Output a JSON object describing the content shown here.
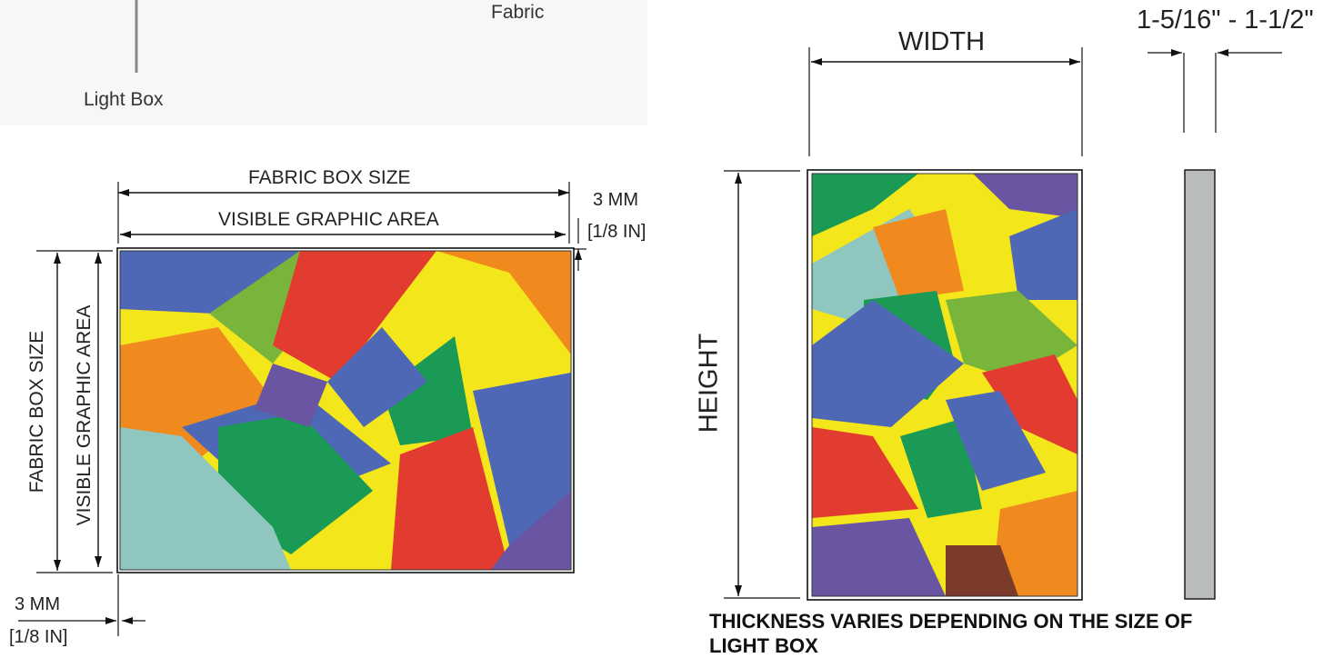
{
  "top_callouts": {
    "light_box": "Light Box",
    "fabric": "Fabric"
  },
  "front_view": {
    "fabric_box_size_horizontal": "FABRIC BOX SIZE",
    "visible_graphic_area_horizontal": "VISIBLE GRAPHIC AREA",
    "fabric_box_size_vertical": "FABRIC BOX SIZE",
    "visible_graphic_area_vertical": "VISIBLE GRAPHIC AREA",
    "margin_top_mm": "3 MM",
    "margin_top_in": "[1/8 IN]",
    "margin_bottom_mm": "3 MM",
    "margin_bottom_in": "[1/8 IN]"
  },
  "side_view": {
    "width_label": "WIDTH",
    "height_label": "HEIGHT",
    "thickness_label": "1-5/16\" - 1-1/2\"",
    "note": "THICKNESS VARIES DEPENDING ON THE SIZE OF LIGHT BOX"
  },
  "colors": {
    "line": "#111111",
    "profile": "#b9bdb9",
    "yellow": "#f3e61b",
    "blue": "#4f68b5",
    "green": "#1a9a55",
    "red": "#e23b2f",
    "orange": "#f08a1e",
    "purple": "#6a55a3",
    "lime": "#7ab53b",
    "teal": "#8fc7c0"
  }
}
